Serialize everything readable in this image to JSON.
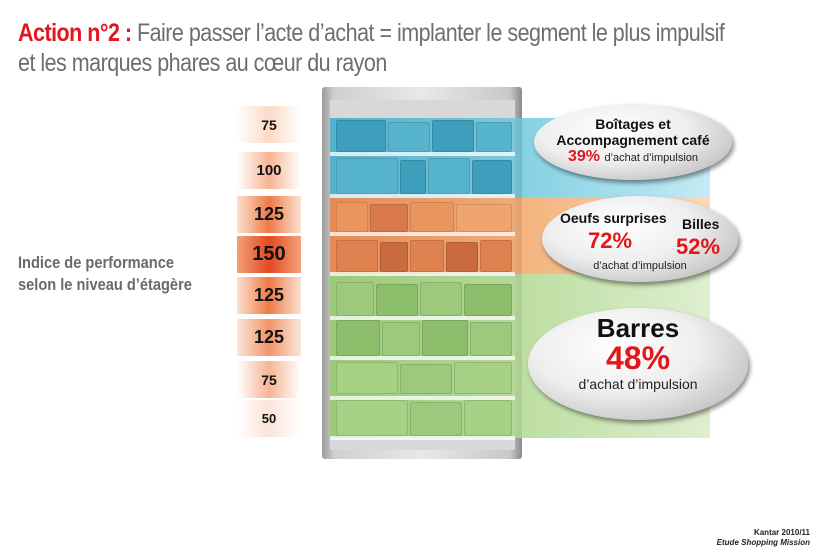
{
  "title": {
    "action": "Action n°2 :",
    "line1_rest": "Faire passer l’acte d’achat = implanter le segment le plus impulsif",
    "line2": "et les marques phares au cœur du rayon"
  },
  "side_label": {
    "line1": "Indice de performance",
    "line2": "selon le niveau d’étagère"
  },
  "shelf_indices": [
    "75",
    "100",
    "125",
    "150",
    "125",
    "125",
    "75",
    "50"
  ],
  "callouts": {
    "boitages": {
      "line1": "Boîtages et",
      "line2": "Accompagnement café",
      "pct": "39%",
      "suffix": "d’achat d’impulsion"
    },
    "oeufs": {
      "name": "Oeufs surprises",
      "pct": "72%",
      "billes_name": "Billes",
      "billes_pct": "52%",
      "suffix": "d’achat d’impulsion"
    },
    "barres": {
      "name": "Barres",
      "pct": "48%",
      "suffix": "d’achat d’impulsion"
    }
  },
  "source": {
    "line1": "Kantar 2010/11",
    "line2": "Etude Shopping Mission"
  },
  "colors": {
    "accent_red": "#e3161b",
    "zone_blue": "#5bb8d2",
    "zone_orange": "#f0a05a",
    "zone_green": "#a4d27e"
  }
}
